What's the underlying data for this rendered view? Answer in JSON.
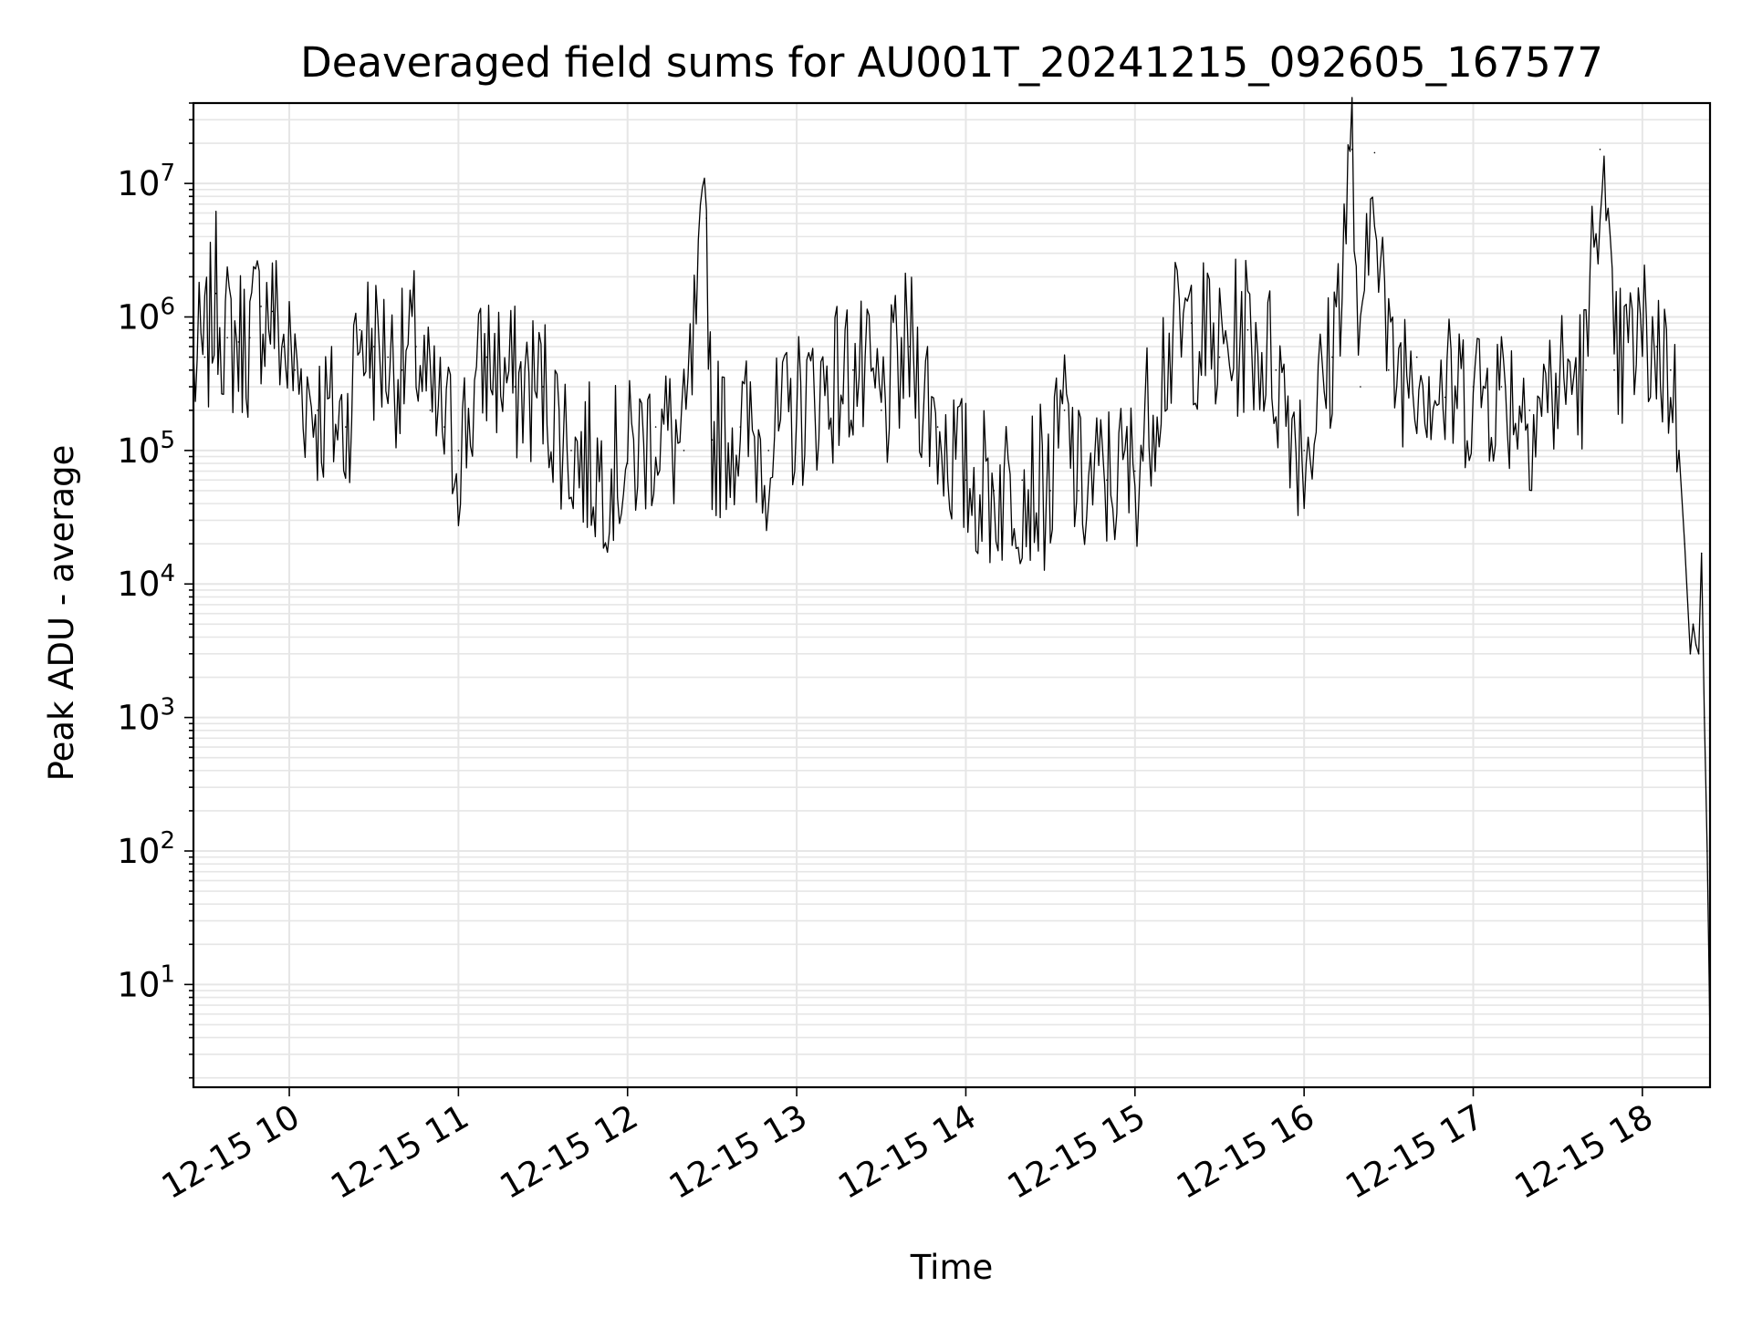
{
  "chart_data": {
    "type": "line",
    "title": "Deaveraged field sums for AU001T_20241215_092605_167577",
    "xlabel": "Time",
    "ylabel": "Peak ADU - average",
    "yscale": "log",
    "grid": true,
    "legend": "none",
    "line_color": "#000000",
    "grid_color": "#e6e6e6",
    "xlim": [
      "12-15 09:26",
      "12-15 18:24"
    ],
    "ylim": [
      1.7,
      40000000
    ],
    "x_ticks": [
      {
        "label": "12-15 10",
        "time": "12-15 10:00"
      },
      {
        "label": "12-15 11",
        "time": "12-15 11:00"
      },
      {
        "label": "12-15 12",
        "time": "12-15 12:00"
      },
      {
        "label": "12-15 13",
        "time": "12-15 13:00"
      },
      {
        "label": "12-15 14",
        "time": "12-15 14:00"
      },
      {
        "label": "12-15 15",
        "time": "12-15 15:00"
      },
      {
        "label": "12-15 16",
        "time": "12-15 16:00"
      },
      {
        "label": "12-15 17",
        "time": "12-15 17:00"
      },
      {
        "label": "12-15 18",
        "time": "12-15 18:00"
      }
    ],
    "y_ticks": [
      {
        "base": "10",
        "exp": "1",
        "value": 10
      },
      {
        "base": "10",
        "exp": "2",
        "value": 100
      },
      {
        "base": "10",
        "exp": "3",
        "value": 1000
      },
      {
        "base": "10",
        "exp": "4",
        "value": 10000
      },
      {
        "base": "10",
        "exp": "5",
        "value": 100000
      },
      {
        "base": "10",
        "exp": "6",
        "value": 1000000
      },
      {
        "base": "10",
        "exp": "7",
        "value": 10000000
      }
    ],
    "series": [
      {
        "x": [
          "12-15 09:26",
          "12-15 09:30",
          "12-15 09:34",
          "12-15 09:38",
          "12-15 09:42",
          "12-15 09:46",
          "12-15 09:50",
          "12-15 09:54",
          "12-15 09:58",
          "12-15 10:02",
          "12-15 10:10",
          "12-15 10:20",
          "12-15 10:25",
          "12-15 10:30",
          "12-15 10:35",
          "12-15 10:40",
          "12-15 10:45",
          "12-15 10:50",
          "12-15 10:55",
          "12-15 11:00",
          "12-15 11:10",
          "12-15 11:20",
          "12-15 11:30",
          "12-15 11:40",
          "12-15 11:50",
          "12-15 12:00",
          "12-15 12:10",
          "12-15 12:20",
          "12-15 12:28",
          "12-15 12:30",
          "12-15 12:40",
          "12-15 12:50",
          "12-15 13:00",
          "12-15 13:10",
          "12-15 13:20",
          "12-15 13:30",
          "12-15 13:40",
          "12-15 13:50",
          "12-15 14:00",
          "12-15 14:10",
          "12-15 14:20",
          "12-15 14:30",
          "12-15 14:35",
          "12-15 14:40",
          "12-15 14:50",
          "12-15 15:00",
          "12-15 15:10",
          "12-15 15:20",
          "12-15 15:30",
          "12-15 15:40",
          "12-15 15:50",
          "12-15 16:00",
          "12-15 16:10",
          "12-15 16:17",
          "12-15 16:20",
          "12-15 16:25",
          "12-15 16:30",
          "12-15 16:40",
          "12-15 16:50",
          "12-15 17:00",
          "12-15 17:10",
          "12-15 17:20",
          "12-15 17:30",
          "12-15 17:40",
          "12-15 17:45",
          "12-15 17:50",
          "12-15 18:00",
          "12-15 18:05",
          "12-15 18:10",
          "12-15 18:13",
          "12-15 18:15",
          "12-15 18:17",
          "12-15 18:18",
          "12-15 18:19",
          "12-15 18:20",
          "12-15 18:21",
          "12-15 18:22",
          "12-15 18:23",
          "12-15 18:24"
        ],
        "y": [
          400000,
          500000,
          1500000,
          700000,
          650000,
          700000,
          1200000,
          1100000,
          600000,
          400000,
          200000,
          150000,
          800000,
          600000,
          500000,
          400000,
          600000,
          200000,
          150000,
          100000,
          500000,
          300000,
          300000,
          100000,
          70000,
          80000,
          150000,
          100000,
          5500000,
          120000,
          150000,
          100000,
          200000,
          300000,
          400000,
          200000,
          600000,
          150000,
          60000,
          50000,
          60000,
          50000,
          200000,
          50000,
          60000,
          70000,
          500000,
          900000,
          500000,
          800000,
          400000,
          100000,
          500000,
          18000000,
          300000,
          17000000,
          400000,
          500000,
          250000,
          300000,
          300000,
          200000,
          300000,
          400000,
          18000000,
          400000,
          700000,
          600000,
          400000,
          100000,
          20000,
          3000,
          5000,
          3500,
          3000,
          17000,
          1000,
          100,
          3.8
        ]
      }
    ]
  }
}
